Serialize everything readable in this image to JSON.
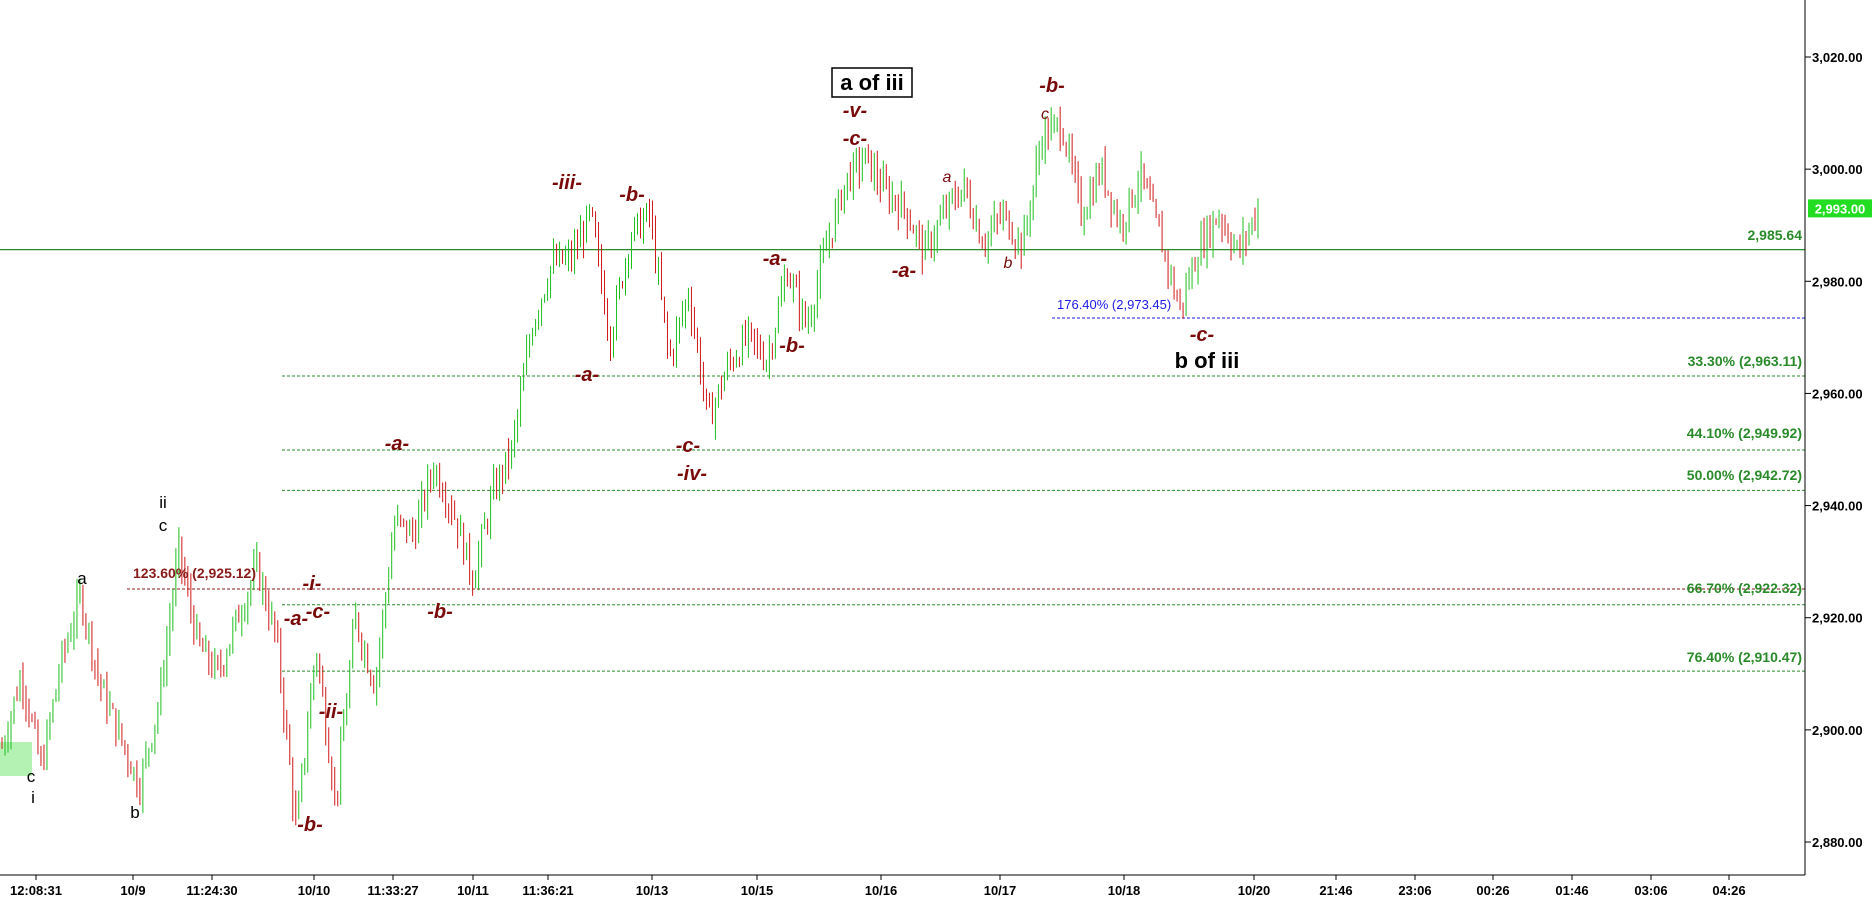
{
  "chart_data": {
    "type": "candlestick",
    "y_axis": {
      "position": "right",
      "ylim": [
        2875,
        3027
      ],
      "ticks": [
        2880,
        2900,
        2920,
        2940,
        2960,
        2980,
        3000,
        3020
      ],
      "tick_labels": [
        "2,880.00",
        "2,900.00",
        "2,920.00",
        "2,940.00",
        "2,960.00",
        "2,980.00",
        "3,000.00",
        "3,020.00"
      ]
    },
    "x_axis": {
      "tick_labels": [
        "12:08:31",
        "10/9",
        "11:24:30",
        "10/10",
        "11:33:27",
        "10/11",
        "11:36:21",
        "10/13",
        "10/15",
        "10/16",
        "10/17",
        "10/18",
        "10/20",
        "21:46",
        "23:06",
        "00:26",
        "01:46",
        "03:06",
        "04:26"
      ]
    },
    "current_price": {
      "value": 2993.0,
      "label": "2,993.00",
      "color": "#22dd22"
    },
    "horizontal_lines": [
      {
        "id": "level",
        "value": 2985.64,
        "label": "2,985.64",
        "style": "solid",
        "color": "#2a8a2a",
        "x_start": "chart-left"
      },
      {
        "id": "fib176",
        "value": 2973.45,
        "label": "176.40% (2,973.45)",
        "style": "dotted",
        "color": "#1a1ae6",
        "x_start": "10/17 session"
      },
      {
        "id": "fib333",
        "value": 2963.11,
        "label": "33.30% (2,963.11)",
        "style": "dotted",
        "color": "#2a8a2a",
        "x_start": "10/10"
      },
      {
        "id": "fib441",
        "value": 2949.92,
        "label": "44.10% (2,949.92)",
        "style": "dotted",
        "color": "#2a8a2a",
        "x_start": "10/10"
      },
      {
        "id": "fib500",
        "value": 2942.72,
        "label": "50.00% (2,942.72)",
        "style": "dotted",
        "color": "#2a8a2a",
        "x_start": "10/10"
      },
      {
        "id": "fib1236",
        "value": 2925.12,
        "label": "123.60% (2,925.12)",
        "style": "dotted",
        "color": "#8a1a1a",
        "x_start": "10/9"
      },
      {
        "id": "fib667",
        "value": 2922.32,
        "label": "66.70% (2,922.32)",
        "style": "dotted",
        "color": "#2a8a2a",
        "x_start": "10/10"
      },
      {
        "id": "fib764",
        "value": 2910.47,
        "label": "76.40% (2,910.47)",
        "style": "dotted",
        "color": "#2a8a2a",
        "x_start": "10/10"
      }
    ],
    "price_path": [
      {
        "session": "12:08:31",
        "price": 2897
      },
      {
        "session": "12:08:31",
        "price": 2910
      },
      {
        "session": "12:08:31",
        "price": 2893
      },
      {
        "session": "12:08:31",
        "price": 2912
      },
      {
        "session": "10/9",
        "price": 2924
      },
      {
        "session": "10/9",
        "price": 2908
      },
      {
        "session": "10/9",
        "price": 2899
      },
      {
        "session": "10/9",
        "price": 2890
      },
      {
        "session": "10/9",
        "price": 2905
      },
      {
        "session": "10/9",
        "price": 2932
      },
      {
        "session": "11:24:30",
        "price": 2915
      },
      {
        "session": "11:24:30",
        "price": 2910
      },
      {
        "session": "11:24:30",
        "price": 2920
      },
      {
        "session": "11:24:30",
        "price": 2929
      },
      {
        "session": "11:24:30",
        "price": 2916
      },
      {
        "session": "11:24:30",
        "price": 2882
      },
      {
        "session": "10/10",
        "price": 2915
      },
      {
        "session": "10/10",
        "price": 2887
      },
      {
        "session": "10/10",
        "price": 2920
      },
      {
        "session": "10/10",
        "price": 2908
      },
      {
        "session": "11:33:27",
        "price": 2937
      },
      {
        "session": "11:33:27",
        "price": 2935
      },
      {
        "session": "11:33:27",
        "price": 2947
      },
      {
        "session": "11:33:27",
        "price": 2939
      },
      {
        "session": "11:33:27",
        "price": 2927
      },
      {
        "session": "11:33:27",
        "price": 2942
      },
      {
        "session": "10/11",
        "price": 2950
      },
      {
        "session": "10/11",
        "price": 2972
      },
      {
        "session": "10/11",
        "price": 2983
      },
      {
        "session": "10/11",
        "price": 2984
      },
      {
        "session": "11:36:21",
        "price": 2992
      },
      {
        "session": "11:36:21",
        "price": 2970
      },
      {
        "session": "11:36:21",
        "price": 2988
      },
      {
        "session": "11:36:21",
        "price": 2992
      },
      {
        "session": "11:36:21",
        "price": 2966
      },
      {
        "session": "10/13",
        "price": 2978
      },
      {
        "session": "10/13",
        "price": 2955
      },
      {
        "session": "10/13",
        "price": 2965
      },
      {
        "session": "10/13",
        "price": 2970
      },
      {
        "session": "10/13",
        "price": 2966
      },
      {
        "session": "10/15",
        "price": 2982
      },
      {
        "session": "10/15",
        "price": 2972
      },
      {
        "session": "10/15",
        "price": 2986
      },
      {
        "session": "10/15",
        "price": 2998
      },
      {
        "session": "10/15",
        "price": 3002
      },
      {
        "session": "10/15",
        "price": 2996
      },
      {
        "session": "10/16",
        "price": 2993
      },
      {
        "session": "10/16",
        "price": 2985
      },
      {
        "session": "10/16",
        "price": 2992
      },
      {
        "session": "10/16",
        "price": 2997
      },
      {
        "session": "10/16",
        "price": 2987
      },
      {
        "session": "10/16",
        "price": 2992
      },
      {
        "session": "10/17",
        "price": 2986
      },
      {
        "session": "10/17",
        "price": 3006
      },
      {
        "session": "10/17",
        "price": 3008
      },
      {
        "session": "10/17",
        "price": 2992
      },
      {
        "session": "10/17",
        "price": 3000
      },
      {
        "session": "10/18",
        "price": 2990
      },
      {
        "session": "10/18",
        "price": 2999
      },
      {
        "session": "10/18",
        "price": 2988
      },
      {
        "session": "10/18",
        "price": 2975
      },
      {
        "session": "10/18",
        "price": 2986
      },
      {
        "session": "10/20",
        "price": 2992
      },
      {
        "session": "10/20",
        "price": 2985
      },
      {
        "session": "10/20",
        "price": 2993
      }
    ],
    "annotations": {
      "red_large": [
        "-iii-",
        "-b-",
        "-a-",
        "-c-",
        "-iv-",
        "-a-",
        "-b-",
        "-v-",
        "-c-",
        "-a-",
        "-b-",
        "-c-",
        "-a-",
        "-b-",
        "-i-",
        "-a-",
        "-c-",
        "-ii-",
        "-b-"
      ],
      "red_small": [
        "a",
        "b",
        "c"
      ],
      "black": [
        "a",
        "b",
        "ii",
        "c",
        "c",
        "i"
      ],
      "boxed_label": "a of iii",
      "big_label": "b of iii"
    }
  }
}
